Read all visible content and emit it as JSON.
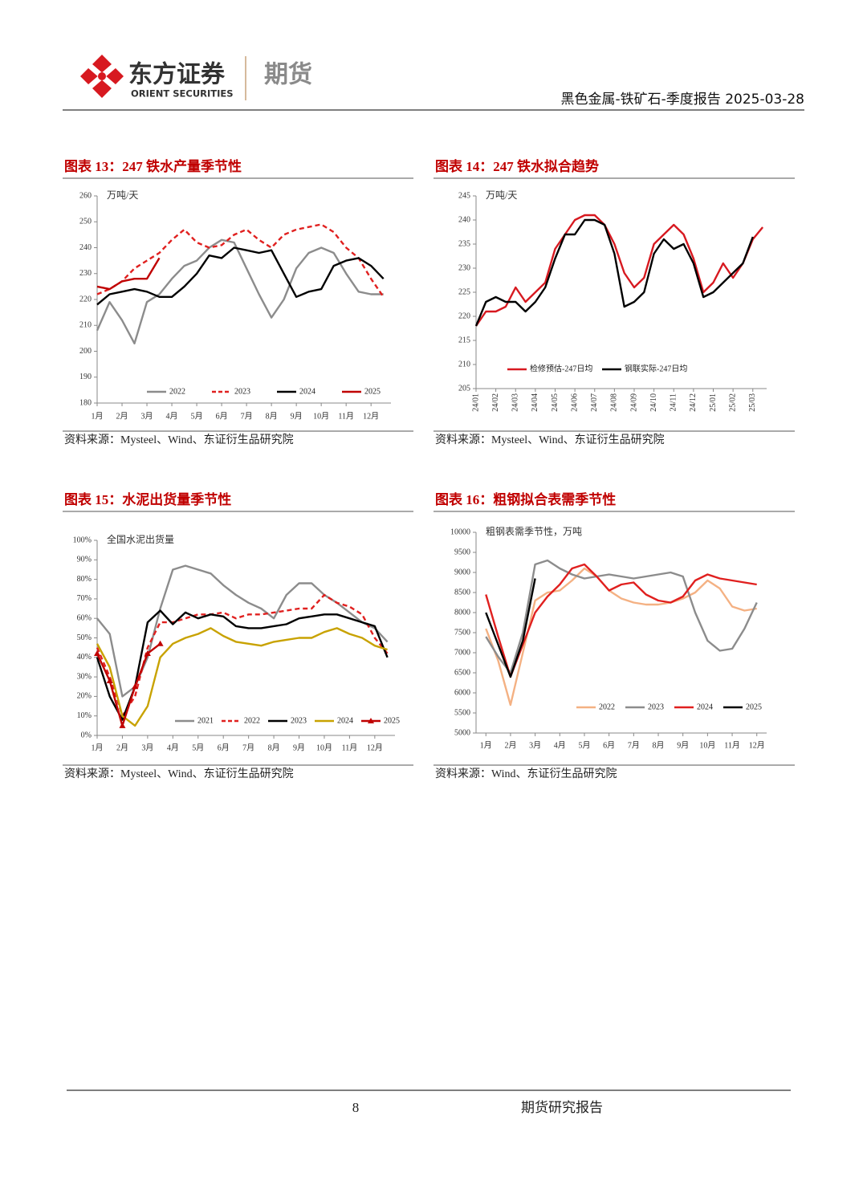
{
  "header": {
    "brand": "东方证券",
    "brand_en": "ORIENT SECURITIES",
    "division": "期货",
    "report": "黑色金属-铁矿石-季度报告 2025-03-28"
  },
  "chart_data": [
    {
      "type": "line",
      "caption": "图表 13：247 铁水产量季节性",
      "subtitle": "万吨/天",
      "source": "资料来源：Mysteel、Wind、东证衍生品研究院",
      "x": [
        1,
        1.5,
        2,
        2.5,
        3,
        3.5,
        4,
        4.5,
        5,
        5.5,
        6,
        6.5,
        7,
        7.5,
        8,
        8.5,
        9,
        9.5,
        10,
        10.5,
        11,
        11.5,
        12,
        12.5
      ],
      "xlim": [
        1,
        12.8
      ],
      "xticks": [
        {
          "value": 1,
          "label": "1月"
        },
        {
          "value": 2,
          "label": "2月"
        },
        {
          "value": 3,
          "label": "3月"
        },
        {
          "value": 4,
          "label": "4月"
        },
        {
          "value": 5,
          "label": "5月"
        },
        {
          "value": 6,
          "label": "6月"
        },
        {
          "value": 7,
          "label": "7月"
        },
        {
          "value": 8,
          "label": "8月"
        },
        {
          "value": 9,
          "label": "9月"
        },
        {
          "value": 10,
          "label": "10月"
        },
        {
          "value": 11,
          "label": "11月"
        },
        {
          "value": 12,
          "label": "12月"
        }
      ],
      "ylim": [
        180,
        260
      ],
      "yticks": [
        180,
        190,
        200,
        210,
        220,
        230,
        240,
        250,
        260
      ],
      "legend": "bottom",
      "series": [
        {
          "name": "2022",
          "color": "#8c8c8c",
          "values": [
            208,
            219,
            212,
            203,
            219,
            222,
            228,
            233,
            235,
            240,
            243,
            242,
            232,
            222,
            213,
            220,
            232,
            238,
            240,
            238,
            230,
            223,
            222,
            222
          ]
        },
        {
          "name": "2023",
          "color": "#e0201f",
          "dash": true,
          "values": [
            222,
            224,
            227,
            232,
            235,
            238,
            243,
            247,
            242,
            240,
            241,
            245,
            247,
            243,
            240,
            245,
            247,
            248,
            249,
            246,
            240,
            236,
            228,
            221
          ]
        },
        {
          "name": "2024",
          "color": "#000000",
          "values": [
            218,
            222,
            223,
            224,
            223,
            221,
            221,
            225,
            230,
            237,
            236,
            240,
            239,
            238,
            239,
            230,
            221,
            223,
            224,
            233,
            235,
            236,
            233,
            228
          ]
        },
        {
          "name": "2025",
          "color": "#c00000",
          "values": [
            225,
            224,
            227,
            228,
            228,
            236,
            null,
            null,
            null,
            null,
            null,
            null,
            null,
            null,
            null,
            null,
            null,
            null,
            null,
            null,
            null,
            null,
            null,
            null
          ]
        }
      ]
    },
    {
      "type": "line",
      "caption": "图表 14：247 铁水拟合趋势",
      "subtitle": "万吨/天",
      "source": "资料来源：Mysteel、Wind、东证衍生品研究院",
      "x": [
        0,
        0.5,
        1,
        1.5,
        2,
        2.5,
        3,
        3.5,
        4,
        4.5,
        5,
        5.5,
        6,
        6.5,
        7,
        7.5,
        8,
        8.5,
        9,
        9.5,
        10,
        10.5,
        11,
        11.5,
        12,
        12.5,
        13,
        13.5,
        14,
        14.5
      ],
      "xlim": [
        0,
        14.7
      ],
      "xticks": [
        {
          "value": 0,
          "label": "24/01"
        },
        {
          "value": 1,
          "label": "24/02"
        },
        {
          "value": 2,
          "label": "24/03"
        },
        {
          "value": 3,
          "label": "24/04"
        },
        {
          "value": 4,
          "label": "24/05"
        },
        {
          "value": 5,
          "label": "24/06"
        },
        {
          "value": 6,
          "label": "24/07"
        },
        {
          "value": 7,
          "label": "24/08"
        },
        {
          "value": 8,
          "label": "24/09"
        },
        {
          "value": 9,
          "label": "24/10"
        },
        {
          "value": 10,
          "label": "24/11"
        },
        {
          "value": 11,
          "label": "24/12"
        },
        {
          "value": 12,
          "label": "25/01"
        },
        {
          "value": 13,
          "label": "25/02"
        },
        {
          "value": 14,
          "label": "25/03"
        }
      ],
      "ylim": [
        205,
        245
      ],
      "yticks": [
        205,
        210,
        215,
        220,
        225,
        230,
        235,
        240,
        245
      ],
      "legend": "bottom",
      "series": [
        {
          "name": "检修预估-247日均",
          "color": "#d71920",
          "values": [
            218,
            221,
            221,
            222,
            226,
            223,
            225,
            227,
            234,
            237,
            240,
            241,
            241,
            239,
            235,
            229,
            226,
            228,
            235,
            237,
            239,
            237,
            232,
            225,
            227,
            231,
            228,
            231,
            236,
            238.5
          ]
        },
        {
          "name": "钢联实际-247日均",
          "color": "#000000",
          "values": [
            218,
            223,
            224,
            223,
            223,
            221,
            223,
            226,
            232,
            237,
            237,
            240,
            240,
            239,
            233,
            222,
            223,
            225,
            233,
            236,
            234,
            235,
            231,
            224,
            225,
            227,
            229,
            231,
            236.5,
            null
          ]
        }
      ]
    },
    {
      "type": "line",
      "caption": "图表 15：水泥出货量季节性",
      "subtitle": "全国水泥出货量",
      "source": "资料来源：Mysteel、Wind、东证衍生品研究院",
      "x": [
        1,
        1.5,
        2,
        2.5,
        3,
        3.5,
        4,
        4.5,
        5,
        5.5,
        6,
        6.5,
        7,
        7.5,
        8,
        8.5,
        9,
        9.5,
        10,
        10.5,
        11,
        11.5,
        12,
        12.5
      ],
      "xlim": [
        1,
        12.8
      ],
      "xticks": [
        {
          "value": 1,
          "label": "1月"
        },
        {
          "value": 2,
          "label": "2月"
        },
        {
          "value": 3,
          "label": "3月"
        },
        {
          "value": 4,
          "label": "4月"
        },
        {
          "value": 5,
          "label": "5月"
        },
        {
          "value": 6,
          "label": "6月"
        },
        {
          "value": 7,
          "label": "7月"
        },
        {
          "value": 8,
          "label": "8月"
        },
        {
          "value": 9,
          "label": "9月"
        },
        {
          "value": 10,
          "label": "10月"
        },
        {
          "value": 11,
          "label": "11月"
        },
        {
          "value": 12,
          "label": "12月"
        }
      ],
      "ylim": [
        0,
        100
      ],
      "yticks": [
        {
          "value": 0,
          "label": "0%"
        },
        {
          "value": 10,
          "label": "10%"
        },
        {
          "value": 20,
          "label": "20%"
        },
        {
          "value": 30,
          "label": "30%"
        },
        {
          "value": 40,
          "label": "40%"
        },
        {
          "value": 50,
          "label": "50%"
        },
        {
          "value": 60,
          "label": "60%"
        },
        {
          "value": 70,
          "label": "70%"
        },
        {
          "value": 80,
          "label": "80%"
        },
        {
          "value": 90,
          "label": "90%"
        },
        {
          "value": 100,
          "label": "100%"
        }
      ],
      "legend": "bottom",
      "series": [
        {
          "name": "2021",
          "color": "#8c8c8c",
          "values": [
            60,
            52,
            20,
            25,
            40,
            65,
            85,
            87,
            85,
            83,
            77,
            72,
            68,
            65,
            60,
            72,
            78,
            78,
            72,
            68,
            63,
            58,
            55,
            48
          ]
        },
        {
          "name": "2022",
          "color": "#e0201f",
          "dash": true,
          "values": [
            45,
            30,
            10,
            20,
            45,
            58,
            58,
            60,
            62,
            62,
            63,
            60,
            62,
            62,
            63,
            64,
            65,
            65,
            72,
            68,
            66,
            62,
            50,
            42
          ]
        },
        {
          "name": "2023",
          "color": "#000000",
          "values": [
            40,
            20,
            8,
            25,
            58,
            64,
            57,
            63,
            60,
            62,
            61,
            56,
            55,
            55,
            56,
            57,
            60,
            61,
            62,
            62,
            60,
            58,
            56,
            40
          ]
        },
        {
          "name": "2024",
          "color": "#c8a200",
          "values": [
            47,
            35,
            10,
            5,
            15,
            40,
            47,
            50,
            52,
            55,
            51,
            48,
            47,
            46,
            48,
            49,
            50,
            50,
            53,
            55,
            52,
            50,
            46,
            44
          ]
        },
        {
          "name": "2025",
          "color": "#c00000",
          "marker": "triangle",
          "values": [
            42,
            28,
            5,
            25,
            42,
            47,
            null,
            null,
            null,
            null,
            null,
            null,
            null,
            null,
            null,
            null,
            null,
            null,
            null,
            null,
            null,
            null,
            null,
            null
          ]
        }
      ]
    },
    {
      "type": "line",
      "caption": "图表 16：粗钢拟合表需季节性",
      "subtitle": "粗钢表需季节性，万吨",
      "source": "资料来源：Wind、东证衍生品研究院",
      "x": [
        1,
        1.5,
        2,
        2.5,
        3,
        3.5,
        4,
        4.5,
        5,
        5.5,
        6,
        6.5,
        7,
        7.5,
        8,
        8.5,
        9,
        9.5,
        10,
        10.5,
        11,
        11.5,
        12
      ],
      "xlim": [
        0.6,
        12.4
      ],
      "xticks": [
        {
          "value": 1,
          "label": "1月"
        },
        {
          "value": 2,
          "label": "2月"
        },
        {
          "value": 3,
          "label": "3月"
        },
        {
          "value": 4,
          "label": "4月"
        },
        {
          "value": 5,
          "label": "5月"
        },
        {
          "value": 6,
          "label": "6月"
        },
        {
          "value": 7,
          "label": "7月"
        },
        {
          "value": 8,
          "label": "8月"
        },
        {
          "value": 9,
          "label": "9月"
        },
        {
          "value": 10,
          "label": "10月"
        },
        {
          "value": 11,
          "label": "11月"
        },
        {
          "value": 12,
          "label": "12月"
        }
      ],
      "ylim": [
        5000,
        10000
      ],
      "yticks": [
        5000,
        5500,
        6000,
        6500,
        7000,
        7500,
        8000,
        8500,
        9000,
        9500,
        10000
      ],
      "legend": "bottom",
      "series": [
        {
          "name": "2022",
          "color": "#f4b183",
          "values": [
            7600,
            6800,
            5700,
            7000,
            8300,
            8500,
            8550,
            8800,
            9100,
            8900,
            8550,
            8350,
            8250,
            8200,
            8200,
            8250,
            8350,
            8500,
            8800,
            8600,
            8150,
            8050,
            8100
          ]
        },
        {
          "name": "2023",
          "color": "#8c8c8c",
          "values": [
            7400,
            6900,
            6500,
            7500,
            9200,
            9300,
            9100,
            8950,
            8850,
            8900,
            8950,
            8900,
            8850,
            8900,
            8950,
            9000,
            8900,
            8000,
            7300,
            7050,
            7100,
            7600,
            8250
          ]
        },
        {
          "name": "2024",
          "color": "#e0201f",
          "values": [
            8450,
            7400,
            6400,
            7200,
            8000,
            8400,
            8700,
            9100,
            9200,
            8900,
            8550,
            8700,
            8750,
            8450,
            8300,
            8250,
            8400,
            8800,
            8950,
            8850,
            8800,
            8750,
            8700
          ]
        },
        {
          "name": "2025",
          "color": "#000000",
          "values": [
            8000,
            7200,
            6400,
            7300,
            8850,
            null,
            null,
            null,
            null,
            null,
            null,
            null,
            null,
            null,
            null,
            null,
            null,
            null,
            null,
            null,
            null,
            null,
            null
          ]
        }
      ]
    }
  ],
  "footer": {
    "page": "8",
    "series_name": "期货研究报告"
  }
}
